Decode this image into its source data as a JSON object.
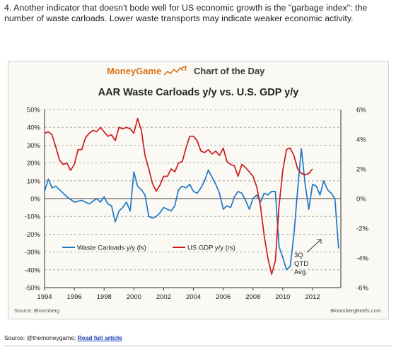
{
  "intro_text": "4. Another indicator that doesn't bode well for US economic growth is the \"garbage index\": the number of waste carloads. Lower waste transports may indicate weaker economic activity.",
  "banner": {
    "brand": "MoneyGame",
    "label": "Chart of the Day"
  },
  "source_left": "Source: Bloomberg",
  "source_right": "BloombergBriefs.com",
  "footer": {
    "prefix": "Source: @themoneygame; ",
    "link": "Read full article"
  },
  "colors": {
    "waste": "#1f78c8",
    "gdp": "#cc1b1b",
    "brand_orange": "#d9731b"
  },
  "chart_data": {
    "type": "line",
    "title": "AAR Waste Carloads y/y vs. U.S. GDP y/y",
    "x_ticks": [
      "1994",
      "1996",
      "1998",
      "2000",
      "2002",
      "2004",
      "2006",
      "2008",
      "2010",
      "2012"
    ],
    "left_axis": {
      "ticks": [
        "50%",
        "40%",
        "30%",
        "20%",
        "10%",
        "0%",
        "-10%",
        "-20%",
        "-30%",
        "-40%",
        "-50%"
      ],
      "range": [
        -50,
        50
      ]
    },
    "right_axis": {
      "ticks": [
        "6%",
        "4%",
        "2%",
        "0%",
        "-2%",
        "-4%",
        "-6%"
      ],
      "range": [
        -6,
        6
      ]
    },
    "grid": true,
    "legend": [
      "Waste Carloads y/y (ls)",
      "US GDP y/y (rs)"
    ],
    "annotation": [
      "3Q",
      "QTD",
      "Avg."
    ],
    "series": [
      {
        "name": "Waste Carloads y/y (ls)",
        "axis": "left",
        "points": [
          [
            1994.0,
            4
          ],
          [
            1994.25,
            11
          ],
          [
            1994.5,
            6
          ],
          [
            1994.75,
            7
          ],
          [
            1995.0,
            5
          ],
          [
            1995.5,
            1
          ],
          [
            1996.0,
            -2
          ],
          [
            1996.5,
            -1
          ],
          [
            1997.0,
            -3
          ],
          [
            1997.5,
            0
          ],
          [
            1997.75,
            -2
          ],
          [
            1998.0,
            1
          ],
          [
            1998.25,
            -3
          ],
          [
            1998.5,
            -4
          ],
          [
            1998.75,
            -13
          ],
          [
            1999.0,
            -7
          ],
          [
            1999.25,
            -5
          ],
          [
            1999.5,
            -2
          ],
          [
            1999.75,
            -7
          ],
          [
            2000.0,
            15
          ],
          [
            2000.25,
            7
          ],
          [
            2000.5,
            5
          ],
          [
            2000.75,
            2
          ],
          [
            2001.0,
            -10
          ],
          [
            2001.25,
            -11
          ],
          [
            2001.5,
            -10
          ],
          [
            2001.75,
            -8
          ],
          [
            2002.0,
            -5
          ],
          [
            2002.5,
            -7
          ],
          [
            2002.75,
            -4
          ],
          [
            2003.0,
            5
          ],
          [
            2003.25,
            7
          ],
          [
            2003.5,
            6
          ],
          [
            2003.75,
            8
          ],
          [
            2004.0,
            4
          ],
          [
            2004.25,
            3
          ],
          [
            2004.5,
            6
          ],
          [
            2004.75,
            10
          ],
          [
            2005.0,
            16
          ],
          [
            2005.25,
            12
          ],
          [
            2005.5,
            8
          ],
          [
            2005.75,
            3
          ],
          [
            2006.0,
            -6
          ],
          [
            2006.25,
            -4
          ],
          [
            2006.5,
            -5
          ],
          [
            2006.75,
            1
          ],
          [
            2007.0,
            4
          ],
          [
            2007.25,
            3
          ],
          [
            2007.5,
            -1
          ],
          [
            2007.75,
            -6
          ],
          [
            2008.0,
            0
          ],
          [
            2008.25,
            2
          ],
          [
            2008.5,
            -2
          ],
          [
            2008.75,
            3
          ],
          [
            2009.0,
            2
          ],
          [
            2009.25,
            4
          ],
          [
            2009.5,
            4
          ],
          [
            2009.75,
            -27
          ],
          [
            2010.0,
            -33
          ],
          [
            2010.25,
            -40
          ],
          [
            2010.5,
            -38
          ],
          [
            2010.75,
            -20
          ],
          [
            2011.0,
            5
          ],
          [
            2011.25,
            28
          ],
          [
            2011.5,
            8
          ],
          [
            2011.75,
            -6
          ],
          [
            2012.0,
            8
          ],
          [
            2012.25,
            7
          ],
          [
            2012.5,
            2
          ],
          [
            2012.75,
            10
          ],
          [
            2013.0,
            5
          ],
          [
            2013.25,
            3
          ],
          [
            2013.5,
            0
          ],
          [
            2013.75,
            -28
          ]
        ]
      },
      {
        "name": "US GDP y/y (rs)",
        "axis": "right",
        "points": [
          [
            1994.0,
            4.4
          ],
          [
            1994.25,
            4.5
          ],
          [
            1994.5,
            4.3
          ],
          [
            1994.75,
            3.5
          ],
          [
            1995.0,
            2.6
          ],
          [
            1995.25,
            2.3
          ],
          [
            1995.5,
            2.4
          ],
          [
            1995.75,
            1.9
          ],
          [
            1996.0,
            2.3
          ],
          [
            1996.25,
            3.3
          ],
          [
            1996.5,
            3.3
          ],
          [
            1996.75,
            4.1
          ],
          [
            1997.0,
            4.4
          ],
          [
            1997.25,
            4.6
          ],
          [
            1997.5,
            4.5
          ],
          [
            1997.75,
            4.8
          ],
          [
            1998.0,
            4.5
          ],
          [
            1998.25,
            4.2
          ],
          [
            1998.5,
            4.3
          ],
          [
            1998.75,
            3.9
          ],
          [
            1999.0,
            4.8
          ],
          [
            1999.25,
            4.7
          ],
          [
            1999.5,
            4.8
          ],
          [
            1999.75,
            4.7
          ],
          [
            2000.0,
            4.4
          ],
          [
            2000.25,
            5.4
          ],
          [
            2000.5,
            4.6
          ],
          [
            2000.75,
            2.9
          ],
          [
            2001.0,
            2.0
          ],
          [
            2001.25,
            1.0
          ],
          [
            2001.5,
            0.5
          ],
          [
            2001.75,
            0.9
          ],
          [
            2002.0,
            1.5
          ],
          [
            2002.25,
            1.5
          ],
          [
            2002.5,
            2.0
          ],
          [
            2002.75,
            1.8
          ],
          [
            2003.0,
            2.4
          ],
          [
            2003.25,
            2.5
          ],
          [
            2003.5,
            3.4
          ],
          [
            2003.75,
            4.2
          ],
          [
            2004.0,
            4.2
          ],
          [
            2004.25,
            3.9
          ],
          [
            2004.5,
            3.2
          ],
          [
            2004.75,
            3.1
          ],
          [
            2005.0,
            3.3
          ],
          [
            2005.25,
            3.0
          ],
          [
            2005.5,
            3.2
          ],
          [
            2005.75,
            2.9
          ],
          [
            2006.0,
            3.4
          ],
          [
            2006.25,
            2.5
          ],
          [
            2006.5,
            2.3
          ],
          [
            2006.75,
            2.2
          ],
          [
            2007.0,
            1.5
          ],
          [
            2007.25,
            2.3
          ],
          [
            2007.5,
            2.1
          ],
          [
            2007.75,
            1.8
          ],
          [
            2008.0,
            1.5
          ],
          [
            2008.25,
            0.8
          ],
          [
            2008.5,
            -0.5
          ],
          [
            2008.75,
            -2.5
          ],
          [
            2009.0,
            -4.0
          ],
          [
            2009.25,
            -5.1
          ],
          [
            2009.5,
            -4.2
          ],
          [
            2009.75,
            -0.5
          ],
          [
            2010.0,
            1.9
          ],
          [
            2010.25,
            3.3
          ],
          [
            2010.5,
            3.4
          ],
          [
            2010.75,
            2.9
          ],
          [
            2011.0,
            2.0
          ],
          [
            2011.25,
            1.7
          ],
          [
            2011.5,
            1.6
          ],
          [
            2011.75,
            1.7
          ],
          [
            2012.0,
            2.0
          ]
        ]
      }
    ]
  }
}
